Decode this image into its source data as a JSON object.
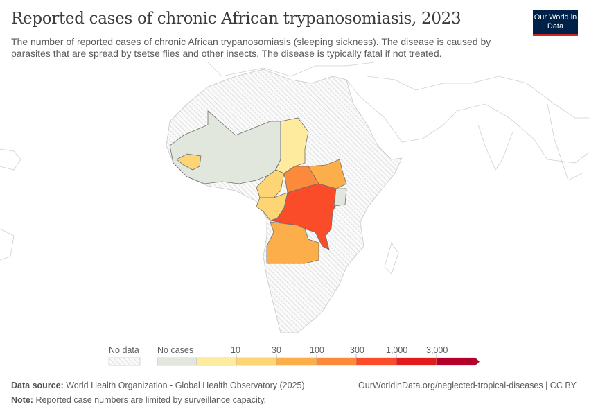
{
  "header": {
    "title": "Reported cases of chronic African trypanosomiasis, 2023",
    "subtitle": "The number of reported cases of chronic African trypanosomiasis (sleeping sickness). The disease is caused by parasites that are spread by tsetse flies and other insects. The disease is typically fatal if not treated.",
    "logo": "Our World in Data"
  },
  "map": {
    "colors": {
      "no_data": "#f0f0f0",
      "no_cases": "#e2e7de",
      "b0_10": "#ffeb9e",
      "b10_30": "#fed574",
      "b30_100": "#fcae4a",
      "b100_300": "#fd8a3b",
      "b300_1000": "#fb4c2a",
      "b1000_3000": "#e21c1c",
      "b3000_plus": "#b4002a"
    },
    "countries": [
      {
        "name": "Chad",
        "bin": "0-10"
      },
      {
        "name": "Guinea",
        "bin": "10-30"
      },
      {
        "name": "Cameroon",
        "bin": "10-30"
      },
      {
        "name": "Gabon",
        "bin": "10-30"
      },
      {
        "name": "Congo",
        "bin": "10-30"
      },
      {
        "name": "Central African Republic",
        "bin": "100-300"
      },
      {
        "name": "South Sudan",
        "bin": "30-100"
      },
      {
        "name": "Democratic Republic of Congo",
        "bin": "300-1,000"
      },
      {
        "name": "Angola",
        "bin": "30-100"
      },
      {
        "name": "Uganda",
        "bin": "No cases"
      }
    ]
  },
  "legend": {
    "no_data": "No data",
    "no_cases": "No cases",
    "ticks": [
      "10",
      "30",
      "100",
      "300",
      "1,000",
      "3,000"
    ]
  },
  "footer": {
    "source_label": "Data source:",
    "source": "World Health Organization - Global Health Observatory (2025)",
    "note_label": "Note:",
    "note": "Reported case numbers are limited by surveillance capacity.",
    "url": "OurWorldinData.org/neglected-tropical-diseases | CC BY"
  }
}
